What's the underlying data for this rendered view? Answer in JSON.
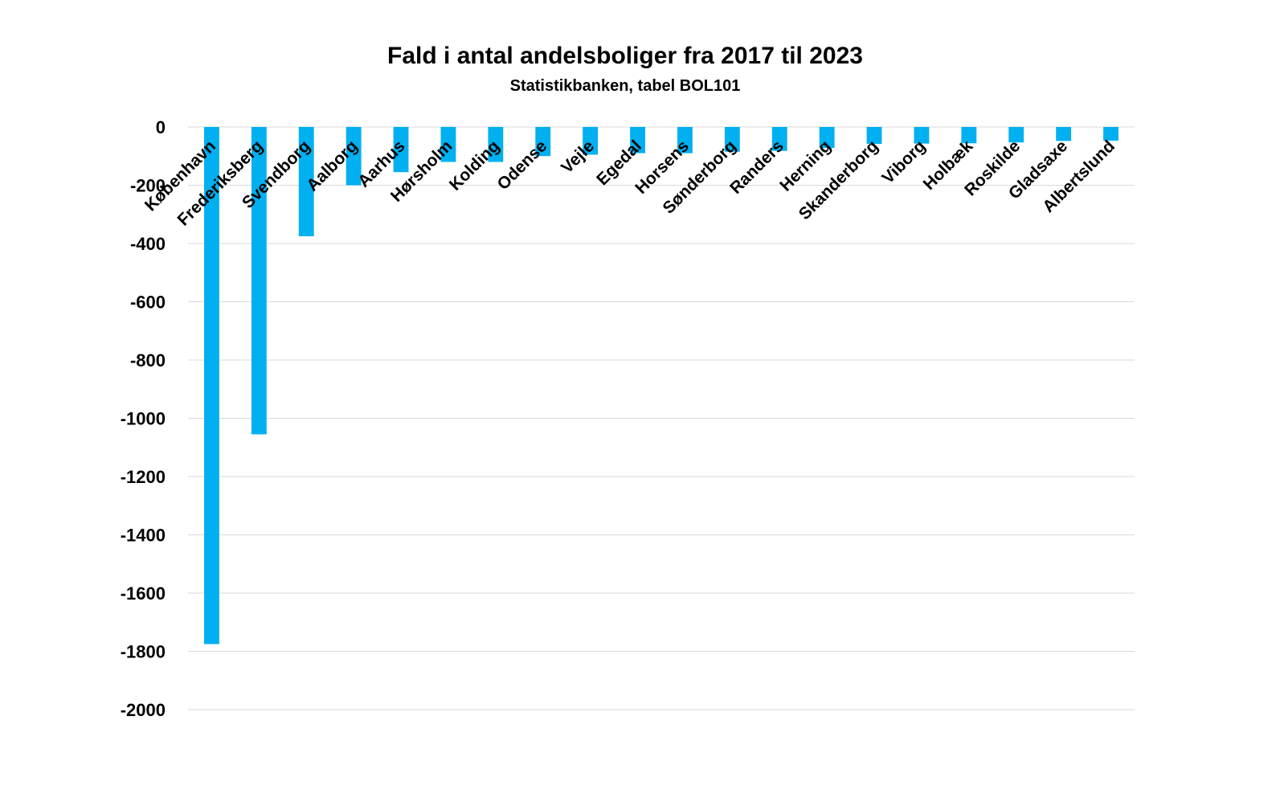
{
  "chart_data": {
    "type": "bar",
    "title": "Fald i antal andelsboliger fra 2017 til 2023",
    "subtitle": "Statistikbanken, tabel BOL101",
    "xlabel": "",
    "ylabel": "",
    "ylim": [
      -2000,
      0
    ],
    "yticks": [
      0,
      -200,
      -400,
      -600,
      -800,
      -1000,
      -1200,
      -1400,
      -1600,
      -1800,
      -2000
    ],
    "grid": true,
    "legend": "none",
    "bar_color": "#00b0f0",
    "categories": [
      "København",
      "Frederiksberg",
      "Svendborg",
      "Aalborg",
      "Aarhus",
      "Hørsholm",
      "Kolding",
      "Odense",
      "Vejle",
      "Egedal",
      "Horsens",
      "Sønderborg",
      "Randers",
      "Herning",
      "Skanderborg",
      "Viborg",
      "Holbæk",
      "Roskilde",
      "Gladsaxe",
      "Albertslund"
    ],
    "values": [
      -1775,
      -1055,
      -375,
      -200,
      -155,
      -120,
      -120,
      -100,
      -95,
      -90,
      -90,
      -85,
      -82,
      -72,
      -58,
      -57,
      -56,
      -53,
      -48,
      -47
    ]
  }
}
